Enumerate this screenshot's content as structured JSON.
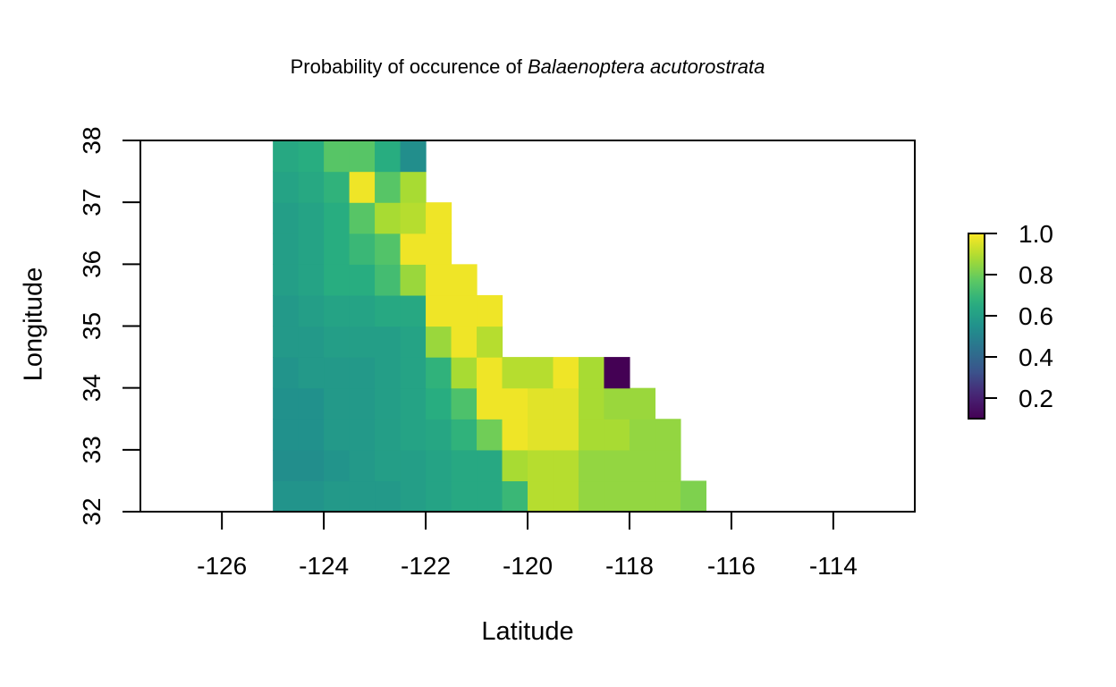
{
  "title": {
    "prefix": "Probability of occurence of ",
    "species": "Balaenoptera acutorostrata"
  },
  "chart_data": {
    "type": "heatmap",
    "title": "Probability of occurence of Balaenoptera acutorostrata",
    "xlabel": "Latitude",
    "ylabel": "Longitude",
    "xlim": [
      -127.6,
      -112.4
    ],
    "ylim": [
      32,
      38
    ],
    "x_ticks": [
      -126,
      -124,
      -122,
      -120,
      -118,
      -116,
      -114
    ],
    "y_ticks": [
      32,
      33,
      34,
      35,
      36,
      37,
      38
    ],
    "cell_size": 0.5,
    "colorbar": {
      "min": 0.1,
      "max": 1.0,
      "ticks": [
        0.2,
        0.4,
        0.6,
        0.8,
        1.0
      ],
      "tick_labels": [
        "0.2",
        "0.4",
        "0.6",
        "0.8",
        "1.0"
      ],
      "palette": "viridis"
    },
    "x_centers": [
      -124.75,
      -124.25,
      -123.75,
      -123.25,
      -122.75,
      -122.25,
      -121.75,
      -121.25,
      -120.75,
      -120.25,
      -119.75,
      -119.25,
      -118.75,
      -118.25,
      -117.75,
      -117.25,
      -116.75
    ],
    "rows": [
      {
        "y": 32.25,
        "values": [
          0.56,
          0.56,
          0.58,
          0.58,
          0.58,
          0.6,
          0.62,
          0.64,
          0.64,
          0.7,
          0.9,
          0.9,
          0.85,
          0.85,
          0.85,
          0.85,
          0.82
        ]
      },
      {
        "y": 32.75,
        "values": [
          0.54,
          0.54,
          0.56,
          0.58,
          0.6,
          0.6,
          0.62,
          0.64,
          0.64,
          0.88,
          0.9,
          0.9,
          0.85,
          0.85,
          0.85,
          0.85,
          null
        ]
      },
      {
        "y": 33.25,
        "values": [
          0.55,
          0.55,
          0.58,
          0.58,
          0.6,
          0.62,
          0.63,
          0.68,
          0.8,
          0.98,
          0.96,
          0.96,
          0.88,
          0.88,
          0.85,
          0.85,
          null
        ]
      },
      {
        "y": 33.75,
        "values": [
          0.55,
          0.55,
          0.58,
          0.58,
          0.6,
          0.62,
          0.66,
          0.74,
          0.98,
          0.98,
          0.96,
          0.96,
          0.88,
          0.86,
          0.86,
          null,
          null
        ]
      },
      {
        "y": 34.25,
        "values": [
          0.56,
          0.58,
          0.58,
          0.58,
          0.6,
          0.62,
          0.68,
          0.88,
          0.98,
          0.9,
          0.9,
          0.98,
          0.88,
          0.1,
          null,
          null,
          null
        ]
      },
      {
        "y": 34.75,
        "values": [
          0.58,
          0.58,
          0.6,
          0.6,
          0.6,
          0.62,
          0.86,
          0.98,
          0.9,
          null,
          null,
          null,
          null,
          null,
          null,
          null,
          null
        ]
      },
      {
        "y": 35.25,
        "values": [
          0.58,
          0.6,
          0.62,
          0.62,
          0.64,
          0.64,
          0.98,
          0.98,
          0.98,
          null,
          null,
          null,
          null,
          null,
          null,
          null,
          null
        ]
      },
      {
        "y": 35.75,
        "values": [
          0.6,
          0.62,
          0.66,
          0.66,
          0.72,
          0.86,
          0.98,
          0.98,
          null,
          null,
          null,
          null,
          null,
          null,
          null,
          null,
          null
        ]
      },
      {
        "y": 36.25,
        "values": [
          0.6,
          0.62,
          0.66,
          0.7,
          0.75,
          0.98,
          0.98,
          null,
          null,
          null,
          null,
          null,
          null,
          null,
          null,
          null,
          null
        ]
      },
      {
        "y": 36.75,
        "values": [
          0.6,
          0.62,
          0.66,
          0.76,
          0.88,
          0.9,
          0.98,
          null,
          null,
          null,
          null,
          null,
          null,
          null,
          null,
          null,
          null
        ]
      },
      {
        "y": 37.25,
        "values": [
          0.62,
          0.64,
          0.68,
          0.98,
          0.76,
          0.88,
          null,
          null,
          null,
          null,
          null,
          null,
          null,
          null,
          null,
          null,
          null
        ]
      },
      {
        "y": 37.75,
        "values": [
          0.64,
          0.66,
          0.76,
          0.76,
          0.66,
          0.54,
          null,
          null,
          null,
          null,
          null,
          null,
          null,
          null,
          null,
          null,
          null
        ]
      }
    ]
  }
}
